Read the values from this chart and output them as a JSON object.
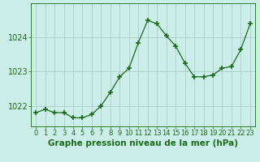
{
  "x": [
    0,
    1,
    2,
    3,
    4,
    5,
    6,
    7,
    8,
    9,
    10,
    11,
    12,
    13,
    14,
    15,
    16,
    17,
    18,
    19,
    20,
    21,
    22,
    23
  ],
  "y": [
    1021.8,
    1021.9,
    1021.8,
    1021.8,
    1021.65,
    1021.65,
    1021.75,
    1022.0,
    1022.4,
    1022.85,
    1023.1,
    1023.85,
    1024.5,
    1024.4,
    1024.05,
    1023.75,
    1023.25,
    1022.85,
    1022.85,
    1022.9,
    1023.1,
    1023.15,
    1023.65,
    1024.4
  ],
  "line_color": "#1a6b1a",
  "marker": "+",
  "marker_size": 4,
  "marker_linewidth": 1.2,
  "bg_color": "#cceee8",
  "grid_color": "#b0d8d0",
  "grid_color_major": "#aacccc",
  "tick_color": "#1a6b1a",
  "xlabel": "Graphe pression niveau de la mer (hPa)",
  "xlabel_color": "#1a6b1a",
  "xlabel_fontsize": 7.5,
  "ylim": [
    1021.4,
    1025.0
  ],
  "yticks": [
    1022,
    1023,
    1024
  ],
  "xticks": [
    0,
    1,
    2,
    3,
    4,
    5,
    6,
    7,
    8,
    9,
    10,
    11,
    12,
    13,
    14,
    15,
    16,
    17,
    18,
    19,
    20,
    21,
    22,
    23
  ],
  "tick_fontsize": 6,
  "ytick_fontsize": 7
}
